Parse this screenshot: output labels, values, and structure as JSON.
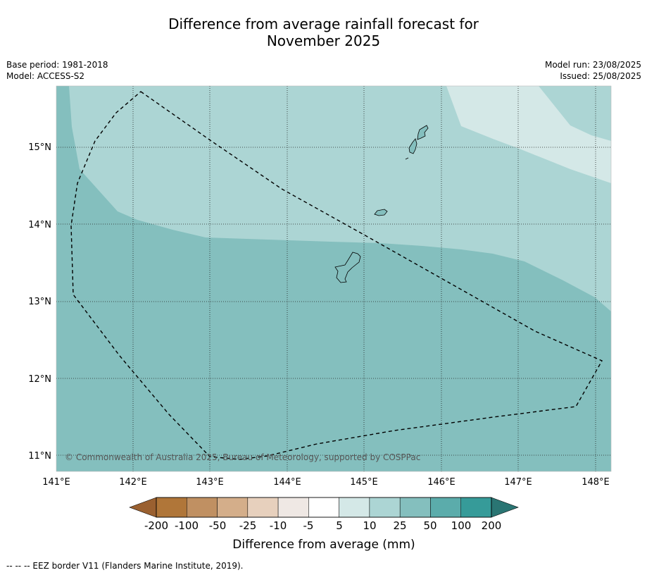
{
  "title_line1": "Difference from average rainfall forecast for",
  "title_line2": "November 2025",
  "base_period": "Base period: 1981-2018",
  "model": "Model: ACCESS-S2",
  "model_run": "Model run: 23/08/2025",
  "issued": "Issued: 25/08/2025",
  "copyright": "© Commonwealth of Australia 2025, Bureau of Meteorology, supported by COSPPac",
  "footnote": "--  --  -- EEZ border V11 (Flanders Marine Institute, 2019).",
  "map": {
    "lon_range": [
      141.0,
      148.2
    ],
    "lat_range": [
      10.8,
      15.8
    ],
    "lon_ticks": [
      "141°E",
      "142°E",
      "143°E",
      "144°E",
      "145°E",
      "146°E",
      "147°E",
      "148°E"
    ],
    "lat_ticks": [
      "15°N",
      "14°N",
      "13°N",
      "12°N",
      "11°N"
    ],
    "grid": true,
    "base_category": "25 to 50",
    "regions": [
      {
        "category": "10 to 25",
        "area": "northern half, north of ~13.7°N"
      },
      {
        "category": "5 to 10",
        "area": "north-east corner"
      }
    ],
    "islands": [
      "island-north",
      "island-small-north",
      "island-mid",
      "island-south-large"
    ],
    "eez_border": "dashed line"
  },
  "colorbar": {
    "title": "Difference from average (mm)",
    "labels": [
      "-200",
      "-100",
      "-50",
      "-25",
      "-10",
      "-5",
      "5",
      "10",
      "25",
      "50",
      "100",
      "200"
    ],
    "colors": [
      "#9a6030",
      "#b07639",
      "#c09062",
      "#d4ae8a",
      "#e7d0bd",
      "#efe8e4",
      "#ffffff",
      "#d4e8e7",
      "#acd5d4",
      "#84bfbe",
      "#5bacab",
      "#369b99",
      "#2a7573"
    ],
    "extend": "both"
  }
}
